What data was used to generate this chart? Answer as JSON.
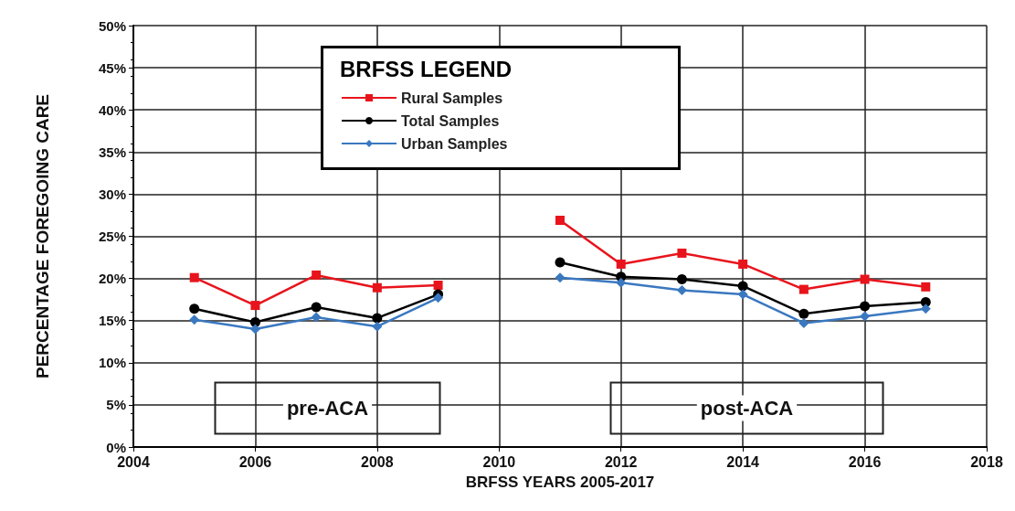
{
  "chart_data": {
    "type": "line",
    "xlabel": "BRFSS YEARS 2005-2017",
    "ylabel": "PERCENTAGE FOREGOING CARE",
    "legend_title": "BRFSS LEGEND",
    "legend": "top left",
    "x": [
      2005,
      2006,
      2007,
      2008,
      2009,
      2010,
      2011,
      2012,
      2013,
      2014,
      2015,
      2016,
      2017
    ],
    "series": [
      {
        "name": "Rural Samples",
        "color": "#e8141c",
        "marker": "square",
        "values": [
          20.1,
          16.8,
          20.4,
          18.9,
          19.2,
          null,
          26.9,
          21.7,
          23.0,
          21.7,
          18.7,
          19.9,
          19.0
        ]
      },
      {
        "name": "Total Samples",
        "color": "#000000",
        "marker": "circle",
        "values": [
          16.4,
          14.8,
          16.6,
          15.3,
          18.1,
          null,
          21.9,
          20.2,
          19.9,
          19.1,
          15.8,
          16.7,
          17.2
        ]
      },
      {
        "name": "Urban Samples",
        "color": "#3a78c0",
        "marker": "diamond",
        "values": [
          15.1,
          14.0,
          15.4,
          14.3,
          17.7,
          null,
          20.1,
          19.5,
          18.6,
          18.1,
          14.7,
          15.5,
          16.4
        ]
      }
    ],
    "xlim": [
      2004,
      2018
    ],
    "xticks": [
      2004,
      2006,
      2008,
      2010,
      2012,
      2014,
      2016,
      2018
    ],
    "ylim": [
      0,
      50
    ],
    "yticks": [
      {
        "value": 0,
        "label": "0%"
      },
      {
        "value": 5,
        "label": "5%"
      },
      {
        "value": 10,
        "label": "10%"
      },
      {
        "value": 15,
        "label": "15%"
      },
      {
        "value": 20,
        "label": "20%"
      },
      {
        "value": 25,
        "label": "25%"
      },
      {
        "value": 30,
        "label": "30%"
      },
      {
        "value": 35,
        "label": "35%"
      },
      {
        "value": 40,
        "label": "40%"
      },
      {
        "value": 45,
        "label": "45%"
      },
      {
        "value": 50,
        "label": "50%"
      }
    ],
    "grid": true,
    "line_style": "solid",
    "annotations": [
      "pre-ACA",
      "post-ACA"
    ]
  }
}
